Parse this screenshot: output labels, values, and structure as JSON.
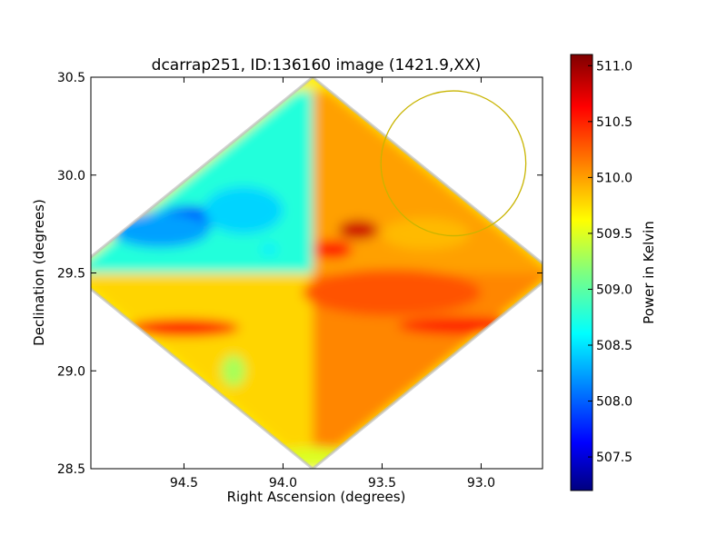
{
  "chart_data": {
    "type": "heatmap",
    "title": "dcarrap251, ID:136160 image (1421.9,XX)",
    "xlabel": "Right Ascension (degrees)",
    "ylabel": "Declination (degrees)",
    "xlim": [
      94.97,
      92.69
    ],
    "ylim": [
      28.5,
      30.5
    ],
    "x_ticks": [
      94.5,
      94.0,
      93.5,
      93.0
    ],
    "x_tick_labels": [
      "94.5",
      "94.0",
      "93.5",
      "93.0"
    ],
    "y_ticks": [
      28.5,
      29.0,
      29.5,
      30.0,
      30.5
    ],
    "y_tick_labels": [
      "28.5",
      "29.0",
      "29.5",
      "30.0",
      "30.5"
    ],
    "grid": false,
    "colormap": "jet",
    "colorbar": {
      "label": "Power in Kelvin",
      "range": [
        507.2,
        511.1
      ],
      "ticks": [
        507.5,
        508.0,
        508.5,
        509.0,
        509.5,
        510.0,
        510.5,
        511.0
      ],
      "tick_labels": [
        "507.5",
        "508.0",
        "508.5",
        "509.0",
        "509.5",
        "510.0",
        "510.5",
        "511.0"
      ]
    },
    "field": {
      "shape": "diamond",
      "center_ra": 93.85,
      "center_dec": 29.5,
      "half_width_ra": 1.22,
      "half_height_dec": 1.0,
      "quadrant_levels": {
        "east": 510.1,
        "west": 508.8,
        "north": 510.0,
        "south": 509.8
      }
    },
    "annotation_circle": {
      "center_ra": 93.14,
      "center_dec": 30.06,
      "radius_dec": 0.37,
      "color": "#c8b400"
    }
  }
}
